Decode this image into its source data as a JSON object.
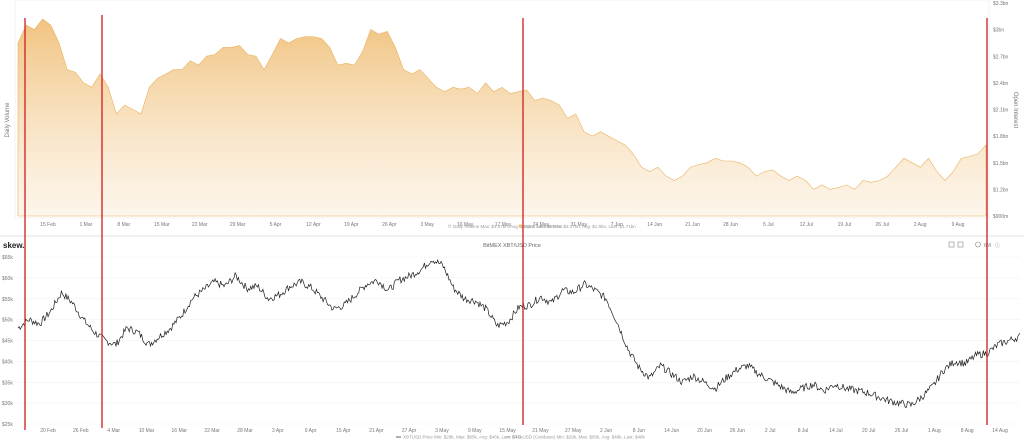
{
  "brand": "skew.",
  "chart_data": [
    {
      "type": "area",
      "ylabel_left": "Daily Volume",
      "ylabel_right": "Open Interest",
      "right_ticks": [
        "$3.3bn",
        "$3bn",
        "$2.7bn",
        "$2.4bn",
        "$2.1bn",
        "$1.8bn",
        "$1.5bn",
        "$1.2bn",
        "$900m"
      ],
      "x_ticks": [
        "15 Feb",
        "1 Mar",
        "8 Mar",
        "15 Mar",
        "22 Mar",
        "29 Mar",
        "5 Apr",
        "12 Apr",
        "19 Apr",
        "26 Apr",
        "3 May",
        "10 May",
        "17 May",
        "24 May",
        "31 May",
        "7 Jun",
        "14 Jun",
        "21 Jun",
        "28 Jun",
        "5 Jul",
        "12 Jul",
        "19 Jul",
        "26 Jul",
        "2 Aug",
        "9 Aug"
      ],
      "legend": [
        "Daily Volume Max: $1.07bn, Avg: $253m, Last: $97.8m",
        "Open Interest Max: $3.17bn, Avg: $1.9bn, Last: $1.71bn"
      ],
      "oi_series": [
        2.85,
        3.05,
        3.0,
        3.12,
        3.05,
        2.85,
        2.55,
        2.52,
        2.4,
        2.35,
        2.5,
        2.35,
        2.05,
        2.15,
        2.1,
        2.05,
        2.35,
        2.45,
        2.5,
        2.55,
        2.55,
        2.65,
        2.6,
        2.7,
        2.72,
        2.8,
        2.8,
        2.82,
        2.72,
        2.7,
        2.55,
        2.72,
        2.9,
        2.85,
        2.9,
        2.92,
        2.92,
        2.9,
        2.8,
        2.6,
        2.62,
        2.6,
        2.75,
        3.0,
        2.95,
        2.98,
        2.8,
        2.55,
        2.5,
        2.55,
        2.45,
        2.35,
        2.3,
        2.35,
        2.33,
        2.35,
        2.28,
        2.4,
        2.3,
        2.35,
        2.28,
        2.3,
        2.32,
        2.2,
        2.23,
        2.2,
        2.15,
        2.0,
        2.05,
        1.85,
        1.8,
        1.85,
        1.8,
        1.75,
        1.7,
        1.6,
        1.45,
        1.4,
        1.45,
        1.35,
        1.3,
        1.35,
        1.45,
        1.48,
        1.5,
        1.55,
        1.52,
        1.52,
        1.5,
        1.45,
        1.35,
        1.4,
        1.42,
        1.35,
        1.3,
        1.35,
        1.3,
        1.2,
        1.25,
        1.2,
        1.22,
        1.25,
        1.2,
        1.3,
        1.28,
        1.3,
        1.35,
        1.45,
        1.55,
        1.5,
        1.45,
        1.55,
        1.4,
        1.3,
        1.4,
        1.55,
        1.57,
        1.6,
        1.7
      ]
    },
    {
      "type": "line",
      "title": "BitMEX XBT/USD Price",
      "left_ticks": [
        "$65k",
        "$60k",
        "$55k",
        "$50k",
        "$45k",
        "$40k",
        "$35k",
        "$30k",
        "$25k"
      ],
      "ylim": [
        25000,
        65000
      ],
      "x_ticks": [
        "20 Feb",
        "26 Feb",
        "4 Mar",
        "10 Mar",
        "16 Mar",
        "22 Mar",
        "28 Mar",
        "3 Apr",
        "9 Apr",
        "15 Apr",
        "21 Apr",
        "27 Apr",
        "3 May",
        "9 May",
        "15 May",
        "21 May",
        "27 May",
        "2 Jun",
        "8 Jun",
        "14 Jun",
        "20 Jun",
        "26 Jun",
        "2 Jul",
        "8 Jul",
        "14 Jul",
        "20 Jul",
        "26 Jul",
        "1 Aug",
        "8 Aug",
        "14 Aug"
      ],
      "legend": [
        "XBTUSD Price Min: $29k, Max: $65k, Avg: $46k, Last: $46k",
        "BTC-USD (Coinbase) Min: $29k, Max: $65k, Avg: $46k, Last: $46k"
      ],
      "series": [
        {
          "name": "XBTUSD Price",
          "values": [
            48000,
            50000,
            49000,
            52000,
            56500,
            54000,
            50000,
            47000,
            45000,
            44000,
            48000,
            47000,
            44000,
            46000,
            48000,
            51000,
            55000,
            57000,
            59000,
            58000,
            60500,
            57500,
            58000,
            55000,
            56000,
            58000,
            59000,
            57500,
            55000,
            52500,
            53500,
            56000,
            58500,
            59500,
            57000,
            59500,
            60500,
            62000,
            64500,
            63000,
            57500,
            55000,
            54500,
            52500,
            48500,
            49500,
            53000,
            53500,
            55500,
            54000,
            57000,
            56500,
            58500,
            57000,
            55000,
            49500,
            43000,
            38500,
            36000,
            39000,
            37000,
            35000,
            36500,
            35000,
            33500,
            36000,
            38000,
            39000,
            37000,
            35500,
            34000,
            32500,
            33500,
            34500,
            33000,
            34500,
            33500,
            33000,
            32500,
            31500,
            30500,
            30000,
            29500,
            31500,
            34000,
            38000,
            40000,
            39500,
            41500,
            42000,
            44000,
            45000,
            46000
          ]
        }
      ]
    }
  ],
  "toolbar": {
    "zoom_label": "6M"
  }
}
